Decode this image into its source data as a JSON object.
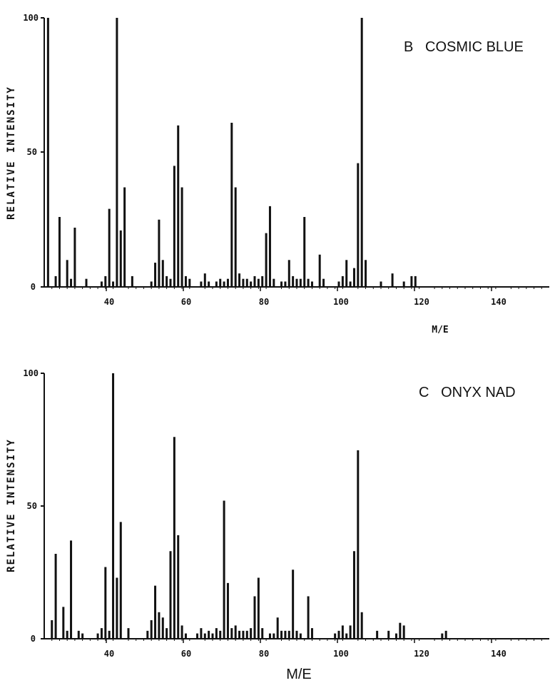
{
  "chart_data": [
    {
      "type": "bar",
      "title": "B   COSMIC BLUE",
      "xlabel": "M/E",
      "ylabel": "RELATIVE INTENSITY",
      "xlim": [
        20,
        152
      ],
      "ylim": [
        0,
        100
      ],
      "xticks": [
        40,
        60,
        80,
        100,
        120,
        140
      ],
      "xtick_labels": [
        "40",
        "60",
        "80",
        "100",
        "120",
        "140"
      ],
      "yticks": [
        0,
        50,
        100
      ],
      "ytick_labels": [
        "0",
        "50",
        "100"
      ],
      "peaks": [
        {
          "x": 21,
          "y": 100
        },
        {
          "x": 23,
          "y": 4
        },
        {
          "x": 24,
          "y": 26
        },
        {
          "x": 26,
          "y": 10
        },
        {
          "x": 27,
          "y": 3
        },
        {
          "x": 28,
          "y": 22
        },
        {
          "x": 31,
          "y": 3
        },
        {
          "x": 35,
          "y": 2
        },
        {
          "x": 36,
          "y": 4
        },
        {
          "x": 37,
          "y": 29
        },
        {
          "x": 38,
          "y": 2
        },
        {
          "x": 39,
          "y": 100
        },
        {
          "x": 40,
          "y": 21
        },
        {
          "x": 41,
          "y": 37
        },
        {
          "x": 43,
          "y": 4
        },
        {
          "x": 48,
          "y": 2
        },
        {
          "x": 49,
          "y": 9
        },
        {
          "x": 50,
          "y": 25
        },
        {
          "x": 51,
          "y": 10
        },
        {
          "x": 52,
          "y": 4
        },
        {
          "x": 53,
          "y": 3
        },
        {
          "x": 54,
          "y": 45
        },
        {
          "x": 55,
          "y": 60
        },
        {
          "x": 56,
          "y": 37
        },
        {
          "x": 57,
          "y": 4
        },
        {
          "x": 58,
          "y": 3
        },
        {
          "x": 61,
          "y": 2
        },
        {
          "x": 62,
          "y": 5
        },
        {
          "x": 63,
          "y": 2
        },
        {
          "x": 65,
          "y": 2
        },
        {
          "x": 66,
          "y": 3
        },
        {
          "x": 67,
          "y": 2
        },
        {
          "x": 68,
          "y": 3
        },
        {
          "x": 69,
          "y": 61
        },
        {
          "x": 70,
          "y": 37
        },
        {
          "x": 71,
          "y": 5
        },
        {
          "x": 72,
          "y": 3
        },
        {
          "x": 73,
          "y": 3
        },
        {
          "x": 74,
          "y": 2
        },
        {
          "x": 75,
          "y": 4
        },
        {
          "x": 76,
          "y": 3
        },
        {
          "x": 77,
          "y": 4
        },
        {
          "x": 78,
          "y": 20
        },
        {
          "x": 79,
          "y": 30
        },
        {
          "x": 80,
          "y": 3
        },
        {
          "x": 82,
          "y": 2
        },
        {
          "x": 83,
          "y": 2
        },
        {
          "x": 84,
          "y": 10
        },
        {
          "x": 85,
          "y": 4
        },
        {
          "x": 86,
          "y": 3
        },
        {
          "x": 87,
          "y": 3
        },
        {
          "x": 88,
          "y": 26
        },
        {
          "x": 89,
          "y": 3
        },
        {
          "x": 90,
          "y": 2
        },
        {
          "x": 92,
          "y": 12
        },
        {
          "x": 93,
          "y": 3
        },
        {
          "x": 97,
          "y": 2
        },
        {
          "x": 98,
          "y": 4
        },
        {
          "x": 99,
          "y": 10
        },
        {
          "x": 100,
          "y": 2
        },
        {
          "x": 101,
          "y": 7
        },
        {
          "x": 102,
          "y": 46
        },
        {
          "x": 103,
          "y": 100
        },
        {
          "x": 104,
          "y": 10
        },
        {
          "x": 108,
          "y": 2
        },
        {
          "x": 111,
          "y": 5
        },
        {
          "x": 114,
          "y": 2
        },
        {
          "x": 116,
          "y": 4
        },
        {
          "x": 117,
          "y": 4
        }
      ]
    },
    {
      "type": "bar",
      "title": "C   ONYX NAD",
      "xlabel": "M/E",
      "ylabel": "RELATIVE INTENSITY",
      "xlim": [
        20,
        152
      ],
      "ylim": [
        0,
        100
      ],
      "xticks": [
        40,
        60,
        80,
        100,
        120,
        140
      ],
      "xtick_labels": [
        "40",
        "60",
        "80",
        "100",
        "120",
        "140"
      ],
      "yticks": [
        0,
        50,
        100
      ],
      "ytick_labels": [
        "0",
        "50",
        "100"
      ],
      "peaks": [
        {
          "x": 22,
          "y": 7
        },
        {
          "x": 23,
          "y": 32
        },
        {
          "x": 25,
          "y": 12
        },
        {
          "x": 26,
          "y": 3
        },
        {
          "x": 27,
          "y": 37
        },
        {
          "x": 29,
          "y": 3
        },
        {
          "x": 30,
          "y": 2
        },
        {
          "x": 34,
          "y": 2
        },
        {
          "x": 35,
          "y": 4
        },
        {
          "x": 36,
          "y": 27
        },
        {
          "x": 37,
          "y": 3
        },
        {
          "x": 38,
          "y": 100
        },
        {
          "x": 39,
          "y": 23
        },
        {
          "x": 40,
          "y": 44
        },
        {
          "x": 42,
          "y": 4
        },
        {
          "x": 47,
          "y": 3
        },
        {
          "x": 48,
          "y": 7
        },
        {
          "x": 49,
          "y": 20
        },
        {
          "x": 50,
          "y": 10
        },
        {
          "x": 51,
          "y": 8
        },
        {
          "x": 52,
          "y": 4
        },
        {
          "x": 53,
          "y": 33
        },
        {
          "x": 54,
          "y": 76
        },
        {
          "x": 55,
          "y": 39
        },
        {
          "x": 56,
          "y": 5
        },
        {
          "x": 57,
          "y": 2
        },
        {
          "x": 60,
          "y": 2
        },
        {
          "x": 61,
          "y": 4
        },
        {
          "x": 62,
          "y": 2
        },
        {
          "x": 63,
          "y": 3
        },
        {
          "x": 64,
          "y": 2
        },
        {
          "x": 65,
          "y": 4
        },
        {
          "x": 66,
          "y": 3
        },
        {
          "x": 67,
          "y": 52
        },
        {
          "x": 68,
          "y": 21
        },
        {
          "x": 69,
          "y": 4
        },
        {
          "x": 70,
          "y": 5
        },
        {
          "x": 71,
          "y": 3
        },
        {
          "x": 72,
          "y": 3
        },
        {
          "x": 73,
          "y": 3
        },
        {
          "x": 74,
          "y": 4
        },
        {
          "x": 75,
          "y": 16
        },
        {
          "x": 76,
          "y": 23
        },
        {
          "x": 77,
          "y": 4
        },
        {
          "x": 79,
          "y": 2
        },
        {
          "x": 80,
          "y": 2
        },
        {
          "x": 81,
          "y": 8
        },
        {
          "x": 82,
          "y": 3
        },
        {
          "x": 83,
          "y": 3
        },
        {
          "x": 84,
          "y": 3
        },
        {
          "x": 85,
          "y": 26
        },
        {
          "x": 86,
          "y": 3
        },
        {
          "x": 87,
          "y": 2
        },
        {
          "x": 89,
          "y": 16
        },
        {
          "x": 90,
          "y": 4
        },
        {
          "x": 96,
          "y": 2
        },
        {
          "x": 97,
          "y": 3
        },
        {
          "x": 98,
          "y": 5
        },
        {
          "x": 99,
          "y": 2
        },
        {
          "x": 100,
          "y": 5
        },
        {
          "x": 101,
          "y": 33
        },
        {
          "x": 102,
          "y": 71
        },
        {
          "x": 103,
          "y": 10
        },
        {
          "x": 107,
          "y": 3
        },
        {
          "x": 110,
          "y": 3
        },
        {
          "x": 112,
          "y": 2
        },
        {
          "x": 113,
          "y": 6
        },
        {
          "x": 114,
          "y": 5
        },
        {
          "x": 124,
          "y": 2
        },
        {
          "x": 125,
          "y": 3
        }
      ]
    }
  ]
}
